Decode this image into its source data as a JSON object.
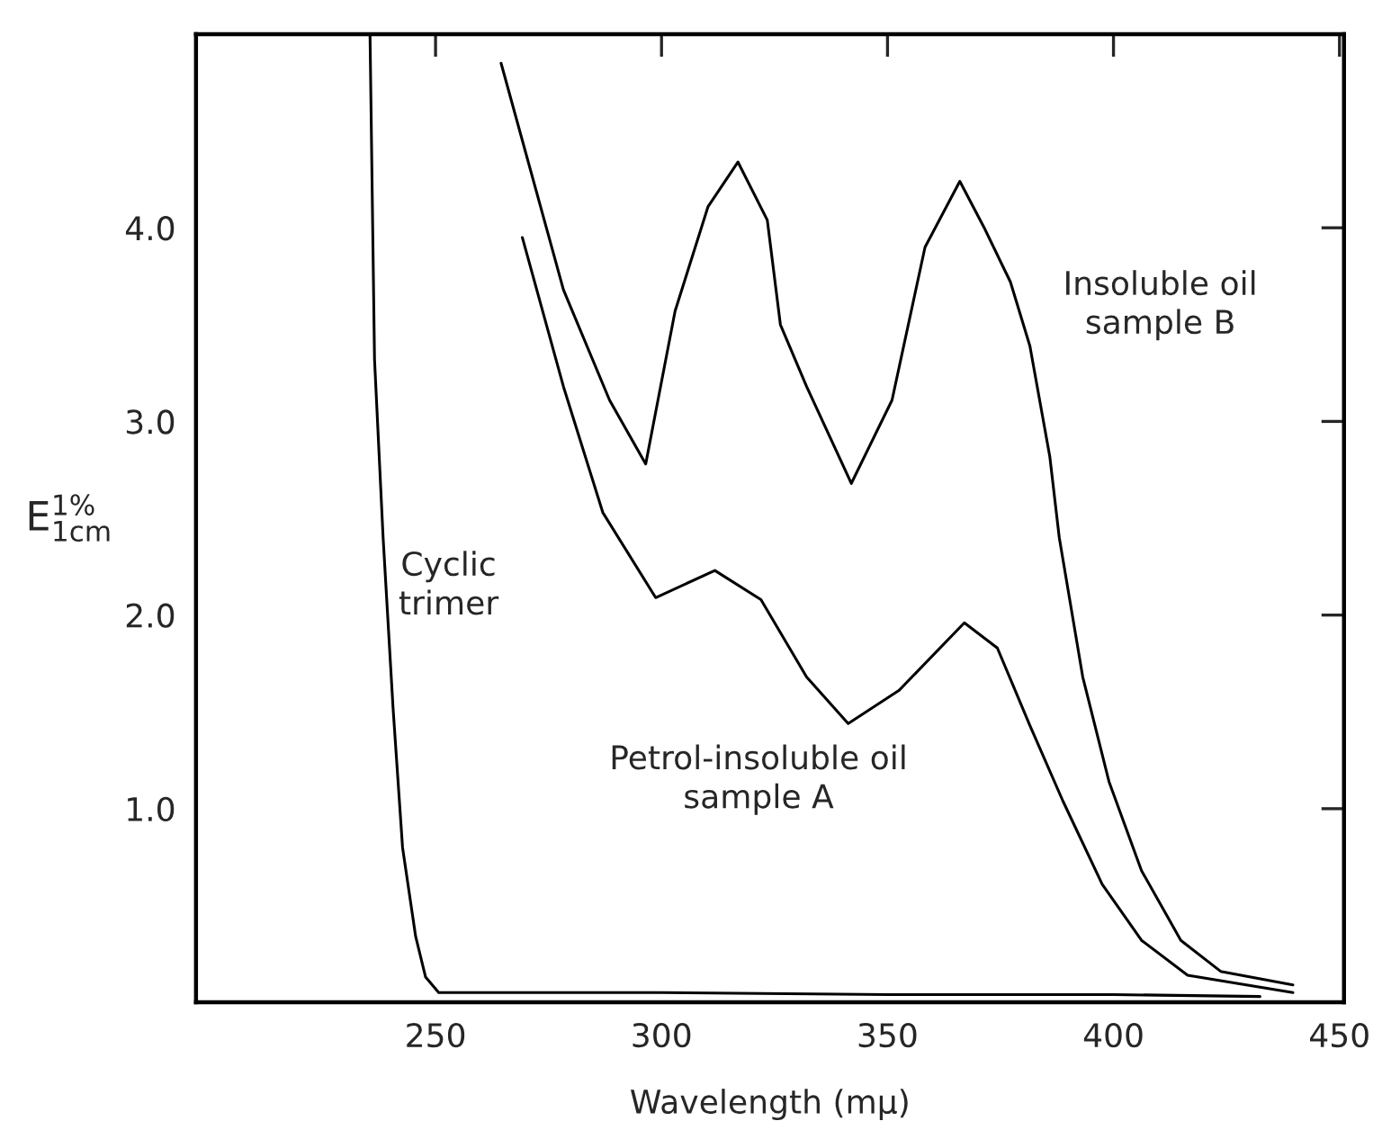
{
  "chart_data": {
    "type": "line",
    "xlabel": "Wavelength (mμ)",
    "ylabel": "E$^{1%}$$_{1cm}$",
    "xlim": [
      197,
      451
    ],
    "ylim": [
      0,
      5.0
    ],
    "xticks": [
      250,
      300,
      350,
      400,
      450
    ],
    "yticks": [
      {
        "value": 1,
        "label": "1.0"
      },
      {
        "value": 2,
        "label": "2.0"
      },
      {
        "value": 3,
        "label": "3.0"
      },
      {
        "value": 4,
        "label": "4.0"
      }
    ],
    "grid": false,
    "legend": false,
    "marker": "none",
    "line_style": "solid",
    "series": [
      {
        "color": "#000000",
        "x": [
          235.5,
          236.5,
          238.4,
          240.6,
          242.7,
          245.6,
          247.8,
          250.7,
          300,
          350,
          400,
          432.4
        ],
        "values": [
          5.0,
          3.32,
          2.4,
          1.52,
          0.8,
          0.34,
          0.13,
          0.05,
          0.05,
          0.04,
          0.04,
          0.03
        ]
      },
      {
        "color": "#000000",
        "x": [
          264.5,
          278.3,
          288.5,
          296.5,
          303,
          310.3,
          316.9,
          323.4,
          326.3,
          332.1,
          342,
          351,
          358.3,
          366,
          371.4,
          377.2,
          381.5,
          385.9,
          388,
          393.2,
          399,
          406.2,
          414.9,
          423.7,
          439.7
        ],
        "values": [
          4.85,
          3.68,
          3.11,
          2.78,
          3.57,
          4.11,
          4.34,
          4.04,
          3.5,
          3.18,
          2.68,
          3.11,
          3.9,
          4.24,
          4.0,
          3.72,
          3.39,
          2.82,
          2.4,
          1.68,
          1.14,
          0.68,
          0.32,
          0.16,
          0.09
        ]
      },
      {
        "color": "#000000",
        "x": [
          269.2,
          278.3,
          287,
          298.7,
          311.8,
          322,
          332.1,
          341.3,
          352.5,
          367,
          374.3,
          381.5,
          388.8,
          397.5,
          406.2,
          416.4,
          439.7
        ],
        "values": [
          3.95,
          3.18,
          2.53,
          2.09,
          2.23,
          2.08,
          1.68,
          1.44,
          1.61,
          1.96,
          1.83,
          1.43,
          1.04,
          0.61,
          0.32,
          0.14,
          0.05
        ]
      }
    ],
    "annotations": [
      "Cyclic\ntrimer",
      "Insoluble oil\nsample B",
      "Petrol-insoluble oil\nsample A"
    ]
  }
}
